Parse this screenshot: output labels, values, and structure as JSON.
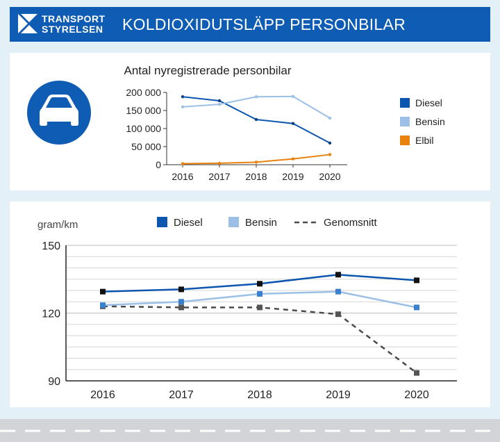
{
  "header": {
    "logo_line1": "TRANSPORT",
    "logo_line2": "STYRELSEN",
    "title": "KOLDIOXIDUTSLÄPP PERSONBILAR"
  },
  "colors": {
    "header_bg": "#0f5cb5",
    "diesel": "#0d56b0",
    "bensin": "#9cbfe6",
    "elbil": "#e8820c",
    "average": "#4a4a4a",
    "background": "#e3f0f8"
  },
  "icon": "car-icon",
  "chart_data": [
    {
      "type": "line",
      "title": "Antal nyregistrerade personbilar",
      "x": [
        "2016",
        "2017",
        "2018",
        "2019",
        "2020"
      ],
      "ylim": [
        0,
        200000
      ],
      "yticks": [
        "0",
        "50 000",
        "100 000",
        "150 000",
        "200 000"
      ],
      "legend_position": "right",
      "series": [
        {
          "name": "Diesel",
          "values": [
            188000,
            177000,
            125000,
            114000,
            60000
          ]
        },
        {
          "name": "Bensin",
          "values": [
            160000,
            167000,
            188000,
            189000,
            129000
          ]
        },
        {
          "name": "Elbil",
          "values": [
            3000,
            4000,
            7000,
            16000,
            28000
          ]
        }
      ]
    },
    {
      "type": "line",
      "ylabel": "gram/km",
      "x": [
        "2016",
        "2017",
        "2018",
        "2019",
        "2020"
      ],
      "ylim": [
        90,
        150
      ],
      "yticks": [
        "90",
        "120",
        "150"
      ],
      "grid": true,
      "legend_position": "top",
      "series": [
        {
          "name": "Diesel",
          "values": [
            129.5,
            130.5,
            133,
            137,
            134.5
          ]
        },
        {
          "name": "Bensin",
          "values": [
            123.5,
            125,
            128.5,
            129.5,
            122.5
          ]
        },
        {
          "name": "Genomsnitt",
          "values": [
            123,
            122.5,
            122.5,
            119.5,
            93.5
          ]
        }
      ]
    }
  ]
}
